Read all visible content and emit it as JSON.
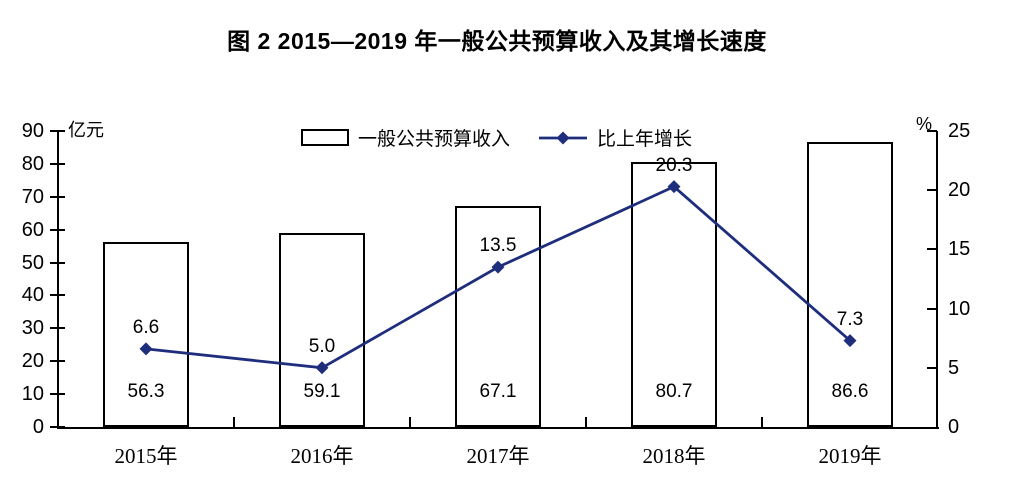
{
  "chart_data": {
    "type": "bar",
    "title": "图 2 2015—2019 年一般公共预算收入及其增长速度",
    "categories": [
      "2015年",
      "2016年",
      "2017年",
      "2018年",
      "2019年"
    ],
    "series": [
      {
        "name": "一般公共预算收入",
        "type": "bar",
        "axis": "left",
        "values": [
          56.3,
          59.1,
          67.1,
          80.7,
          86.6
        ]
      },
      {
        "name": "比上年增长",
        "type": "line",
        "axis": "right",
        "values": [
          6.6,
          5.0,
          13.5,
          20.3,
          7.3
        ]
      }
    ],
    "left_axis": {
      "unit": "亿元",
      "min": 0,
      "max": 90,
      "step": 10
    },
    "right_axis": {
      "unit": "%",
      "min": 0,
      "max": 25,
      "step": 5
    },
    "legend_position": "top",
    "grid": "off",
    "colors": {
      "bar_fill": "#ffffff",
      "bar_border": "#000000",
      "line": "#1f2d7d",
      "axis": "#000000",
      "text": "#000000"
    }
  }
}
